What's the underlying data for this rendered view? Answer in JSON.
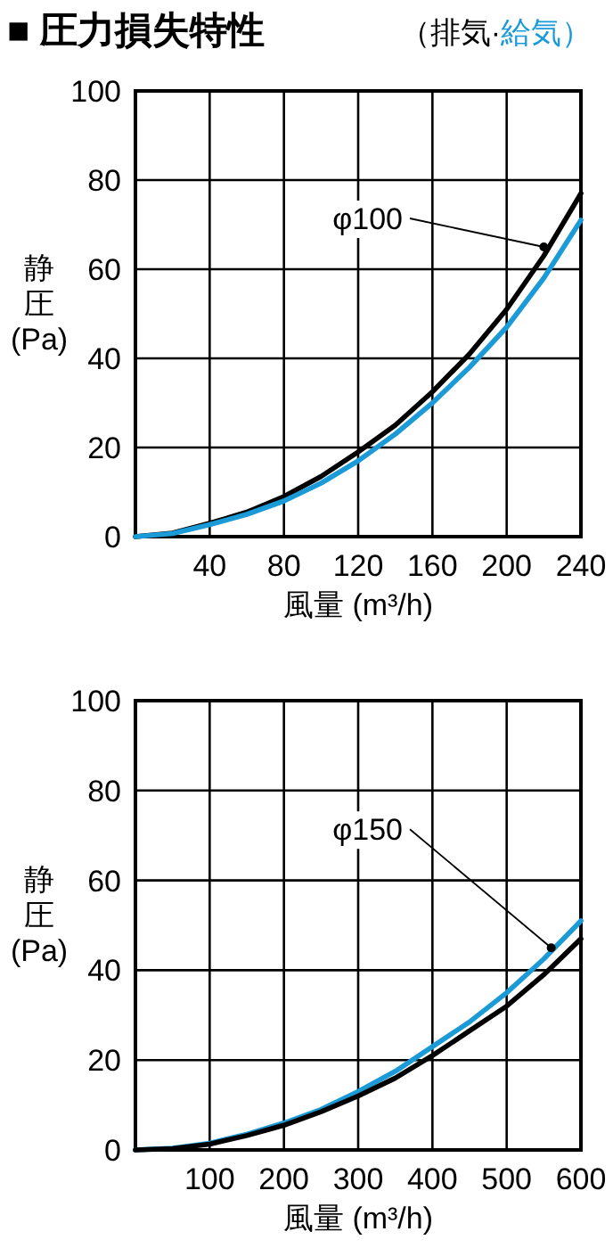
{
  "chart_data": [
    {
      "type": "line",
      "title": "■ 圧力損失特性",
      "legend": "top right",
      "xlabel": "風量 (m³/h)",
      "ylabel": "静圧(Pa)",
      "xlim": [
        0,
        240
      ],
      "xticks": [
        40,
        80,
        120,
        160,
        200,
        240
      ],
      "ylim": [
        0,
        100
      ],
      "yticks": [
        0,
        20,
        40,
        60,
        80,
        100
      ],
      "grid": true,
      "line_style": "solid",
      "x": [
        0,
        20,
        40,
        60,
        80,
        100,
        120,
        140,
        160,
        180,
        200,
        220,
        240
      ],
      "series": [
        {
          "name": "（排気·",
          "color": "#000000",
          "values": [
            0,
            0.8,
            3,
            5.5,
            9,
            13.5,
            19,
            25,
            32.5,
            41,
            51,
            63,
            77
          ]
        },
        {
          "name": "給気）",
          "color": "#1a9ad6",
          "values": [
            0,
            0.7,
            2.7,
            5,
            8,
            12,
            17,
            23,
            30,
            38,
            47,
            58,
            71
          ]
        }
      ],
      "annotations": [
        {
          "text": "φ100",
          "x": 220,
          "y": 65
        }
      ]
    },
    {
      "type": "line",
      "xlabel": "風量 (m³/h)",
      "ylabel": "静圧(Pa)",
      "xlim": [
        0,
        600
      ],
      "xticks": [
        100,
        200,
        300,
        400,
        500,
        600
      ],
      "ylim": [
        0,
        100
      ],
      "yticks": [
        0,
        20,
        40,
        60,
        80,
        100
      ],
      "grid": true,
      "line_style": "solid",
      "x": [
        0,
        50,
        100,
        150,
        200,
        250,
        300,
        350,
        400,
        450,
        500,
        550,
        600
      ],
      "series": [
        {
          "color": "#1a9ad6",
          "values": [
            0,
            0.4,
            1.5,
            3.5,
            6,
            9,
            13,
            17.5,
            23,
            28.5,
            35,
            42.5,
            51
          ]
        },
        {
          "color": "#000000",
          "values": [
            0,
            0.3,
            1.3,
            3.2,
            5.5,
            8.5,
            12,
            16,
            21,
            26.5,
            32,
            39,
            47
          ]
        }
      ],
      "annotations": [
        {
          "text": "φ150",
          "x": 560,
          "y": 45
        }
      ]
    }
  ]
}
